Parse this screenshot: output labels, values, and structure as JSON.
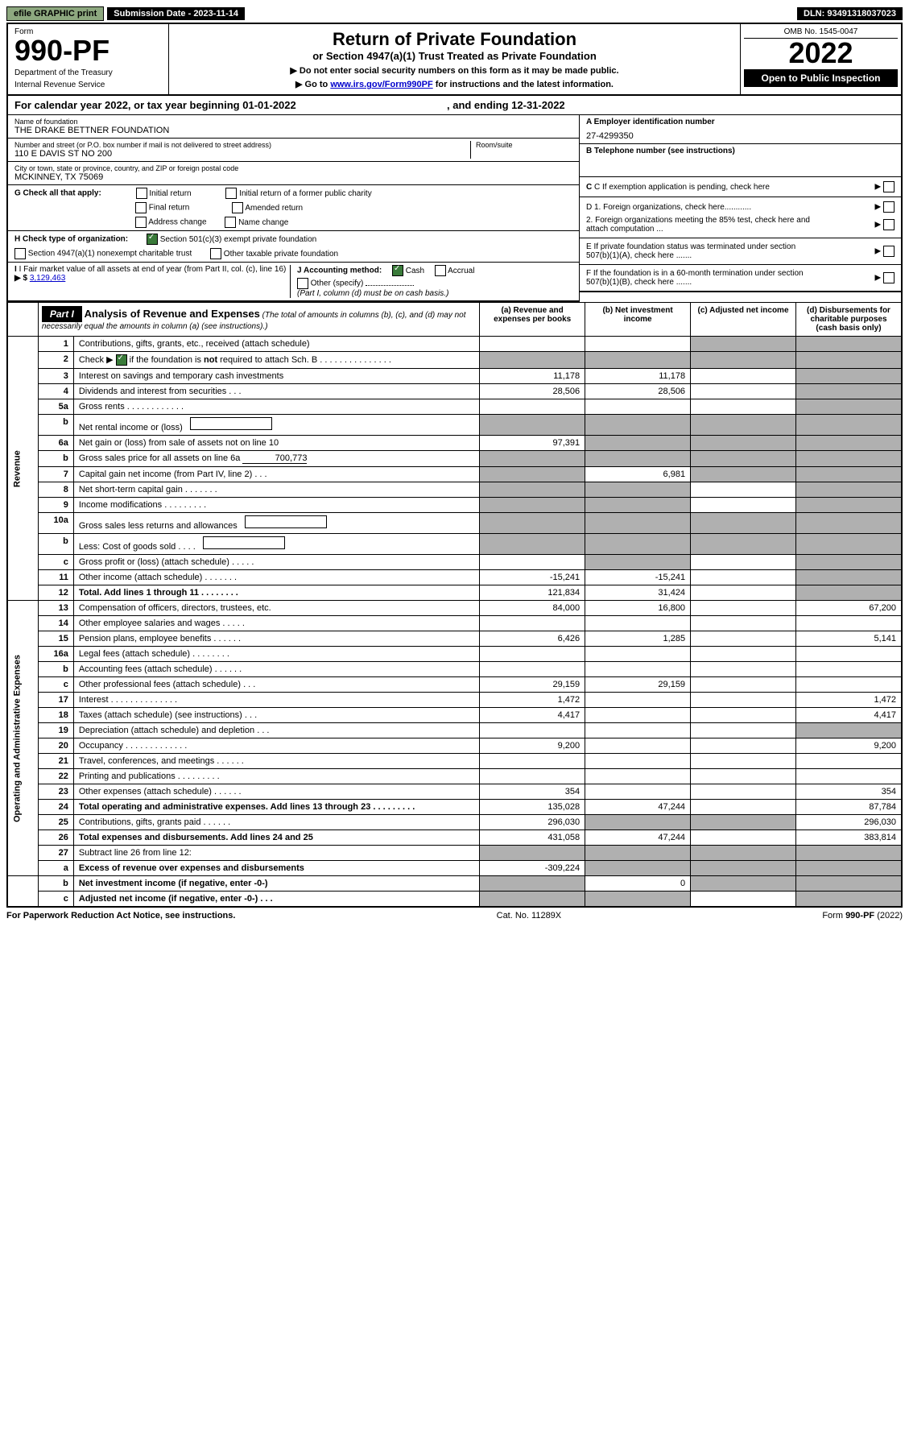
{
  "topbar": {
    "efile": "efile GRAPHIC print",
    "submission": "Submission Date - 2023-11-14",
    "dln": "DLN: 93491318037023"
  },
  "header": {
    "form_label": "Form",
    "form_number": "990-PF",
    "dept1": "Department of the Treasury",
    "dept2": "Internal Revenue Service",
    "title": "Return of Private Foundation",
    "subtitle": "or Section 4947(a)(1) Trust Treated as Private Foundation",
    "note1": "▶ Do not enter social security numbers on this form as it may be made public.",
    "note2_pre": "▶ Go to ",
    "note2_link": "www.irs.gov/Form990PF",
    "note2_post": " for instructions and the latest information.",
    "omb": "OMB No. 1545-0047",
    "year": "2022",
    "open_public": "Open to Public Inspection"
  },
  "cal_year": {
    "pre": "For calendar year 2022, or tax year beginning ",
    "begin": "01-01-2022",
    "mid": ", and ending ",
    "end": "12-31-2022"
  },
  "info": {
    "name_label": "Name of foundation",
    "name": "THE DRAKE BETTNER FOUNDATION",
    "addr_label": "Number and street (or P.O. box number if mail is not delivered to street address)",
    "addr": "110 E DAVIS ST NO 200",
    "room_label": "Room/suite",
    "city_label": "City or town, state or province, country, and ZIP or foreign postal code",
    "city": "MCKINNEY, TX  75069",
    "a_label": "A Employer identification number",
    "a_val": "27-4299350",
    "b_label": "B Telephone number (see instructions)",
    "c_label": "C If exemption application is pending, check here",
    "g_label": "G Check all that apply:",
    "g_opts": [
      "Initial return",
      "Initial return of a former public charity",
      "Final return",
      "Amended return",
      "Address change",
      "Name change"
    ],
    "d1": "D 1. Foreign organizations, check here............",
    "d2": "2. Foreign organizations meeting the 85% test, check here and attach computation ...",
    "e": "E  If private foundation status was terminated under section 507(b)(1)(A), check here .......",
    "h_label": "H Check type of organization:",
    "h1": "Section 501(c)(3) exempt private foundation",
    "h2": "Section 4947(a)(1) nonexempt charitable trust",
    "h3": "Other taxable private foundation",
    "f": "F  If the foundation is in a 60-month termination under section 507(b)(1)(B), check here .......",
    "i_label": "I Fair market value of all assets at end of year (from Part II, col. (c), line 16)",
    "i_val": "3,129,463",
    "j_label": "J Accounting method:",
    "j_cash": "Cash",
    "j_accrual": "Accrual",
    "j_other": "Other (specify)",
    "j_note": "(Part I, column (d) must be on cash basis.)"
  },
  "part1": {
    "label": "Part I",
    "title": "Analysis of Revenue and Expenses",
    "title_note": "(The total of amounts in columns (b), (c), and (d) may not necessarily equal the amounts in column (a) (see instructions).)",
    "col_a": "(a) Revenue and expenses per books",
    "col_b": "(b) Net investment income",
    "col_c": "(c) Adjusted net income",
    "col_d": "(d) Disbursements for charitable purposes (cash basis only)"
  },
  "sections": {
    "revenue": "Revenue",
    "opex": "Operating and Administrative Expenses"
  },
  "rows": [
    {
      "n": "1",
      "desc": "Contributions, gifts, grants, etc., received (attach schedule)",
      "a": "",
      "b": "",
      "c": "",
      "d": "",
      "shade_c": true,
      "shade_d": true
    },
    {
      "n": "2",
      "desc": "Check ▶ ☑ if the foundation is not required to attach Sch. B   .  .  .  .  .  .  .  .  .  .  .  .  .  .  .",
      "checkmark": true,
      "a": "",
      "b": "",
      "c": "",
      "d": "",
      "shade_a": true,
      "shade_b": true,
      "shade_c": true,
      "shade_d": true
    },
    {
      "n": "3",
      "desc": "Interest on savings and temporary cash investments",
      "a": "11,178",
      "b": "11,178",
      "c": "",
      "d": "",
      "shade_d": true
    },
    {
      "n": "4",
      "desc": "Dividends and interest from securities   .  .  .",
      "a": "28,506",
      "b": "28,506",
      "c": "",
      "d": "",
      "shade_d": true
    },
    {
      "n": "5a",
      "desc": "Gross rents   .  .  .  .  .  .  .  .  .  .  .  .",
      "a": "",
      "b": "",
      "c": "",
      "d": "",
      "shade_d": true
    },
    {
      "n": "b",
      "desc": "Net rental income or (loss)",
      "a": "",
      "b": "",
      "c": "",
      "d": "",
      "embedded": true,
      "shade_a": true,
      "shade_b": true,
      "shade_c": true,
      "shade_d": true
    },
    {
      "n": "6a",
      "desc": "Net gain or (loss) from sale of assets not on line 10",
      "a": "97,391",
      "b": "",
      "c": "",
      "d": "",
      "shade_b": true,
      "shade_c": true,
      "shade_d": true
    },
    {
      "n": "b",
      "desc": "Gross sales price for all assets on line 6a",
      "embedded_val": "700,773",
      "a": "",
      "b": "",
      "c": "",
      "d": "",
      "shade_a": true,
      "shade_b": true,
      "shade_c": true,
      "shade_d": true
    },
    {
      "n": "7",
      "desc": "Capital gain net income (from Part IV, line 2)   .  .  .",
      "a": "",
      "b": "6,981",
      "c": "",
      "d": "",
      "shade_a": true,
      "shade_c": true,
      "shade_d": true
    },
    {
      "n": "8",
      "desc": "Net short-term capital gain  .  .  .  .  .  .  .",
      "a": "",
      "b": "",
      "c": "",
      "d": "",
      "shade_a": true,
      "shade_b": true,
      "shade_d": true
    },
    {
      "n": "9",
      "desc": "Income modifications  .  .  .  .  .  .  .  .  .",
      "a": "",
      "b": "",
      "c": "",
      "d": "",
      "shade_a": true,
      "shade_b": true,
      "shade_d": true
    },
    {
      "n": "10a",
      "desc": "Gross sales less returns and allowances",
      "embedded": true,
      "a": "",
      "b": "",
      "c": "",
      "d": "",
      "shade_a": true,
      "shade_b": true,
      "shade_c": true,
      "shade_d": true
    },
    {
      "n": "b",
      "desc": "Less: Cost of goods sold   .  .  .  .",
      "embedded": true,
      "a": "",
      "b": "",
      "c": "",
      "d": "",
      "shade_a": true,
      "shade_b": true,
      "shade_c": true,
      "shade_d": true
    },
    {
      "n": "c",
      "desc": "Gross profit or (loss) (attach schedule)   .  .  .  .  .",
      "a": "",
      "b": "",
      "c": "",
      "d": "",
      "shade_b": true,
      "shade_d": true
    },
    {
      "n": "11",
      "desc": "Other income (attach schedule)   .  .  .  .  .  .  .",
      "a": "-15,241",
      "b": "-15,241",
      "c": "",
      "d": "",
      "shade_d": true
    },
    {
      "n": "12",
      "desc": "Total. Add lines 1 through 11   .  .  .  .  .  .  .  .",
      "bold": true,
      "a": "121,834",
      "b": "31,424",
      "c": "",
      "d": "",
      "shade_d": true
    },
    {
      "n": "13",
      "desc": "Compensation of officers, directors, trustees, etc.",
      "a": "84,000",
      "b": "16,800",
      "c": "",
      "d": "67,200"
    },
    {
      "n": "14",
      "desc": "Other employee salaries and wages   .  .  .  .  .",
      "a": "",
      "b": "",
      "c": "",
      "d": ""
    },
    {
      "n": "15",
      "desc": "Pension plans, employee benefits  .  .  .  .  .  .",
      "a": "6,426",
      "b": "1,285",
      "c": "",
      "d": "5,141"
    },
    {
      "n": "16a",
      "desc": "Legal fees (attach schedule)  .  .  .  .  .  .  .  .",
      "a": "",
      "b": "",
      "c": "",
      "d": ""
    },
    {
      "n": "b",
      "desc": "Accounting fees (attach schedule)  .  .  .  .  .  .",
      "a": "",
      "b": "",
      "c": "",
      "d": ""
    },
    {
      "n": "c",
      "desc": "Other professional fees (attach schedule)   .  .  .",
      "a": "29,159",
      "b": "29,159",
      "c": "",
      "d": ""
    },
    {
      "n": "17",
      "desc": "Interest  .  .  .  .  .  .  .  .  .  .  .  .  .  .",
      "a": "1,472",
      "b": "",
      "c": "",
      "d": "1,472"
    },
    {
      "n": "18",
      "desc": "Taxes (attach schedule) (see instructions)   .  .  .",
      "a": "4,417",
      "b": "",
      "c": "",
      "d": "4,417"
    },
    {
      "n": "19",
      "desc": "Depreciation (attach schedule) and depletion   .  .  .",
      "a": "",
      "b": "",
      "c": "",
      "d": "",
      "shade_d": true
    },
    {
      "n": "20",
      "desc": "Occupancy  .  .  .  .  .  .  .  .  .  .  .  .  .",
      "a": "9,200",
      "b": "",
      "c": "",
      "d": "9,200"
    },
    {
      "n": "21",
      "desc": "Travel, conferences, and meetings  .  .  .  .  .  .",
      "a": "",
      "b": "",
      "c": "",
      "d": ""
    },
    {
      "n": "22",
      "desc": "Printing and publications  .  .  .  .  .  .  .  .  .",
      "a": "",
      "b": "",
      "c": "",
      "d": ""
    },
    {
      "n": "23",
      "desc": "Other expenses (attach schedule)  .  .  .  .  .  .",
      "a": "354",
      "b": "",
      "c": "",
      "d": "354"
    },
    {
      "n": "24",
      "desc": "Total operating and administrative expenses. Add lines 13 through 23   .  .  .  .  .  .  .  .  .",
      "bold": true,
      "a": "135,028",
      "b": "47,244",
      "c": "",
      "d": "87,784"
    },
    {
      "n": "25",
      "desc": "Contributions, gifts, grants paid   .  .  .  .  .  .",
      "a": "296,030",
      "b": "",
      "c": "",
      "d": "296,030",
      "shade_b": true,
      "shade_c": true
    },
    {
      "n": "26",
      "desc": "Total expenses and disbursements. Add lines 24 and 25",
      "bold": true,
      "a": "431,058",
      "b": "47,244",
      "c": "",
      "d": "383,814"
    },
    {
      "n": "27",
      "desc": "Subtract line 26 from line 12:",
      "a": "",
      "b": "",
      "c": "",
      "d": "",
      "shade_a": true,
      "shade_b": true,
      "shade_c": true,
      "shade_d": true
    },
    {
      "n": "a",
      "desc": "Excess of revenue over expenses and disbursements",
      "bold": true,
      "a": "-309,224",
      "b": "",
      "c": "",
      "d": "",
      "shade_b": true,
      "shade_c": true,
      "shade_d": true
    },
    {
      "n": "b",
      "desc": "Net investment income (if negative, enter -0-)",
      "bold": true,
      "a": "",
      "b": "0",
      "c": "",
      "d": "",
      "shade_a": true,
      "shade_c": true,
      "shade_d": true
    },
    {
      "n": "c",
      "desc": "Adjusted net income (if negative, enter -0-)   .  .  .",
      "bold": true,
      "a": "",
      "b": "",
      "c": "",
      "d": "",
      "shade_a": true,
      "shade_b": true,
      "shade_d": true
    }
  ],
  "footer": {
    "left": "For Paperwork Reduction Act Notice, see instructions.",
    "mid": "Cat. No. 11289X",
    "right": "Form 990-PF (2022)"
  }
}
